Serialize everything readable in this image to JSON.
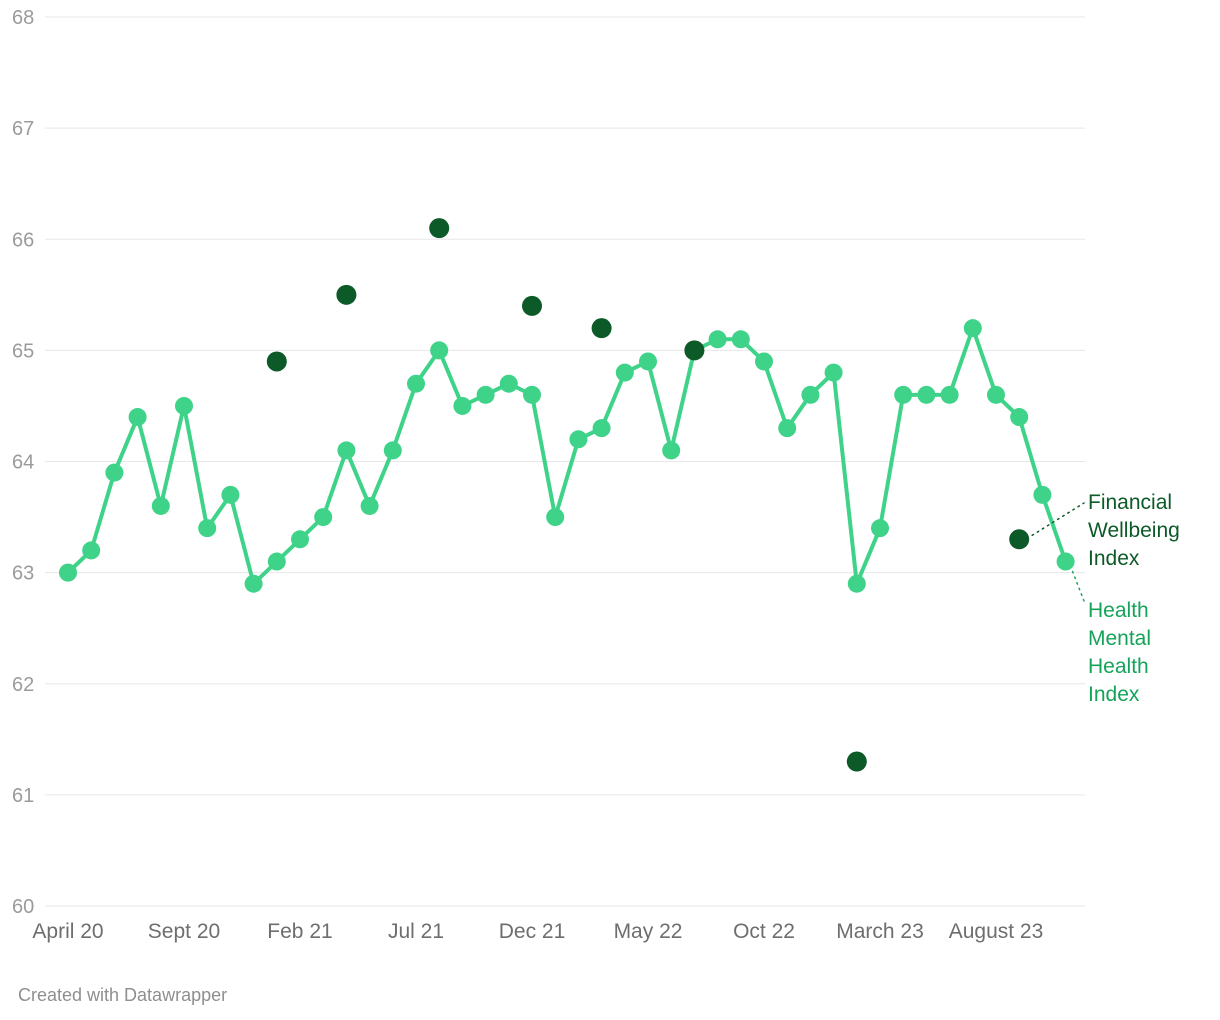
{
  "chart_data": {
    "type": "line",
    "title": "",
    "ylim": [
      60,
      68
    ],
    "yticks": [
      60,
      61,
      62,
      63,
      64,
      65,
      66,
      67,
      68
    ],
    "grid": "horizontal",
    "x_start": "April 2020",
    "x_frequency": "monthly",
    "xticks": [
      {
        "month_index": 0,
        "label": "April 20"
      },
      {
        "month_index": 5,
        "label": "Sept 20"
      },
      {
        "month_index": 10,
        "label": "Feb 21"
      },
      {
        "month_index": 15,
        "label": "Jul 21"
      },
      {
        "month_index": 20,
        "label": "Dec 21"
      },
      {
        "month_index": 25,
        "label": "May 22"
      },
      {
        "month_index": 30,
        "label": "Oct 22"
      },
      {
        "month_index": 35,
        "label": "March 23"
      },
      {
        "month_index": 40,
        "label": "August 23"
      }
    ],
    "series": [
      {
        "name": "Health Mental Health Index",
        "style": "line_with_markers",
        "color": "#3ED389",
        "start_month_index": 0,
        "values": [
          63.0,
          63.2,
          63.9,
          64.4,
          63.6,
          64.5,
          63.4,
          63.7,
          62.9,
          63.1,
          63.3,
          63.5,
          64.1,
          63.6,
          64.1,
          64.7,
          65.0,
          64.5,
          64.6,
          64.7,
          64.6,
          63.5,
          64.2,
          64.3,
          64.8,
          64.9,
          64.1,
          65.0,
          65.1,
          65.1,
          64.9,
          64.3,
          64.6,
          64.8,
          62.9,
          63.4,
          64.6,
          64.6,
          64.6,
          65.2,
          64.6,
          64.4,
          63.7,
          63.1
        ]
      },
      {
        "name": "Financial Wellbeing Index",
        "style": "markers_only",
        "color": "#0C5A28",
        "points": [
          {
            "month_index": 9,
            "value": 64.9
          },
          {
            "month_index": 12,
            "value": 65.5
          },
          {
            "month_index": 16,
            "value": 66.1
          },
          {
            "month_index": 20,
            "value": 65.4
          },
          {
            "month_index": 23,
            "value": 65.2
          },
          {
            "month_index": 27,
            "value": 65.0
          },
          {
            "month_index": 34,
            "value": 61.3
          },
          {
            "month_index": 41,
            "value": 63.3
          }
        ]
      }
    ],
    "annotations": [
      {
        "id": "financial-wellbeing-index-label",
        "lines": [
          "Financial",
          "Wellbeing",
          "Index"
        ],
        "color": "#0C5A28",
        "target": {
          "month_index": 41,
          "value": 63.3
        }
      },
      {
        "id": "health-mental-health-index-label",
        "lines": [
          "Health",
          "Mental",
          "Health",
          "Index"
        ],
        "color": "#15A35A",
        "target": {
          "month_index": 43,
          "value": 63.1
        }
      }
    ],
    "legend_position": "right-annotations"
  },
  "footer": {
    "text": "Created with Datawrapper"
  }
}
